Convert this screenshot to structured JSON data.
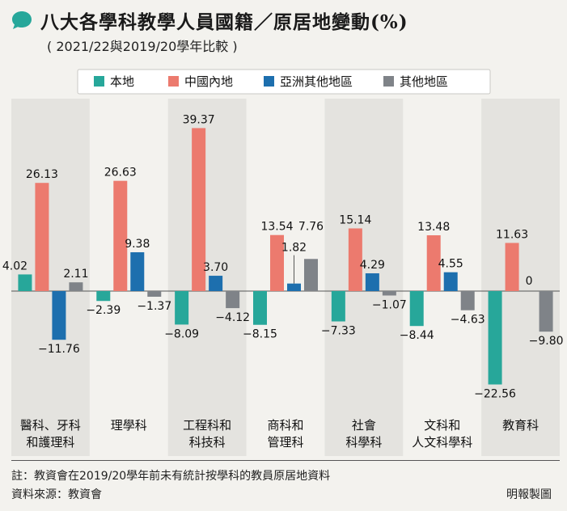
{
  "header": {
    "title": "八大各學科教學人員國籍／原居地變動(%)",
    "subtitle": "( 2021/22與2019/20學年比較 )"
  },
  "footer": {
    "note": "註：教資會在2019/20學年前未有統計按學科的教員原居地資料",
    "source": "資料來源：教資會",
    "credit": "明報製圖"
  },
  "colors": {
    "accent": "#27a79a",
    "local": "#27a79a",
    "mainland": "#ec7a6e",
    "asia": "#1d6fae",
    "other": "#7f8388",
    "band": "#e4e3df",
    "background": "#f3f2ee"
  },
  "chart_data": {
    "type": "bar",
    "categories": [
      [
        "醫科、牙科",
        "和護理科"
      ],
      [
        "理學科"
      ],
      [
        "工程科和",
        "科技科"
      ],
      [
        "商科和",
        "管理科"
      ],
      [
        "社會",
        "科學科"
      ],
      [
        "文科和",
        "人文科學科"
      ],
      [
        "教育科"
      ]
    ],
    "series": [
      {
        "name": "本地",
        "color": "#27a79a",
        "values": [
          4.02,
          -2.39,
          -8.09,
          -8.15,
          -7.33,
          -8.44,
          -22.56
        ]
      },
      {
        "name": "中國內地",
        "color": "#ec7a6e",
        "values": [
          26.13,
          26.63,
          39.37,
          13.54,
          15.14,
          13.48,
          11.63
        ]
      },
      {
        "name": "亞洲其他地區",
        "color": "#1d6fae",
        "values": [
          -11.76,
          9.38,
          3.7,
          1.82,
          4.29,
          4.55,
          0
        ]
      },
      {
        "name": "其他地區",
        "color": "#7f8388",
        "values": [
          2.11,
          -1.37,
          -4.12,
          7.76,
          -1.07,
          -4.63,
          -9.8
        ]
      }
    ],
    "labels": [
      [
        "4.02",
        "26.13",
        "−11.76",
        "2.11"
      ],
      [
        "−2.39",
        "26.63",
        "9.38",
        "−1.37"
      ],
      [
        "−8.09",
        "39.37",
        "3.70",
        "−4.12"
      ],
      [
        "−8.15",
        "13.54",
        "1.82",
        "7.76"
      ],
      [
        "−7.33",
        "15.14",
        "4.29",
        "−1.07"
      ],
      [
        "−8.44",
        "13.48",
        "4.55",
        "−4.63"
      ],
      [
        "−22.56",
        "11.63",
        "0",
        "−9.80"
      ]
    ],
    "ylim": [
      -24,
      41
    ],
    "legend_position": "top"
  }
}
